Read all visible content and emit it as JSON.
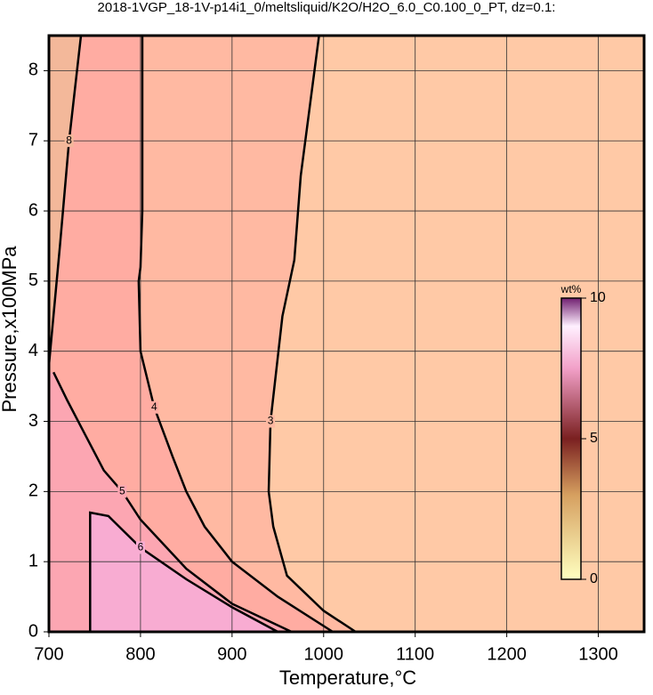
{
  "chart_data": {
    "type": "contour",
    "title": "2018-1VGP_18-1V-p14i1_0/meltsliquid/K2O/H2O_6.0_C0.100_0_PT, dz=0.1:",
    "x_label": "Temperature,°C",
    "y_label": "Pressure,x100MPa",
    "xlim": [
      700,
      1350
    ],
    "ylim": [
      0,
      8.5
    ],
    "xticks": [
      700,
      800,
      900,
      1000,
      1100,
      1200,
      1300
    ],
    "yticks": [
      0,
      1,
      2,
      3,
      4,
      5,
      6,
      7,
      8
    ],
    "grid": true,
    "background": "#ffc9a6",
    "contours": [
      {
        "level": 3,
        "color": "#ffb9a2",
        "x": [
          1035,
          1000,
          960,
          945,
          940,
          942,
          955,
          968,
          975,
          985,
          995
        ],
        "y": [
          0,
          0.3,
          0.8,
          1.5,
          2.0,
          3.0,
          4.5,
          5.3,
          6.5,
          7.5,
          8.5
        ]
      },
      {
        "level": 4,
        "color": "#ffaca2",
        "x": [
          1010,
          950,
          900,
          870,
          850,
          835,
          815,
          800,
          798,
          800,
          802,
          802
        ],
        "y": [
          0,
          0.5,
          1.0,
          1.5,
          2.0,
          2.5,
          3.2,
          4.0,
          5.0,
          5.2,
          6.0,
          8.5
        ]
      },
      {
        "level": 5,
        "color": "#fca6b2",
        "x": [
          965,
          900,
          850,
          800,
          780,
          760,
          740,
          720,
          705
        ],
        "y": [
          0,
          0.4,
          0.9,
          1.6,
          2.0,
          2.3,
          2.8,
          3.3,
          3.7
        ]
      },
      {
        "level": 6,
        "color": "#f8acd2",
        "x": [
          745,
          745,
          765,
          800,
          850,
          900,
          950
        ],
        "y": [
          0,
          1.7,
          1.65,
          1.2,
          0.75,
          0.35,
          0
        ]
      },
      {
        "level": 8,
        "color": "#f3b89a",
        "x": [
          700,
          712,
          722,
          735
        ],
        "y": [
          3.8,
          5.5,
          7.0,
          8.5
        ]
      }
    ],
    "colorbar": {
      "label": "wt%",
      "lim": [
        0,
        10
      ],
      "ticks": [
        0,
        5,
        10
      ]
    }
  }
}
